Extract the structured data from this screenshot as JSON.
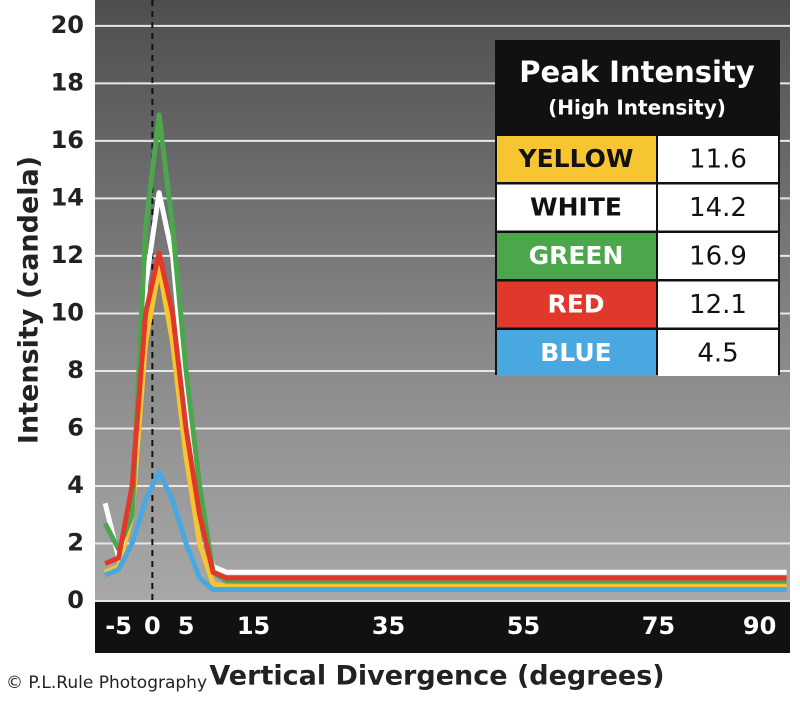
{
  "chart_data": {
    "type": "line",
    "y_label": "Intensity (candela)",
    "x_label": "Vertical Divergence (degrees)",
    "credit": "© P.L.Rule Photography",
    "x": [
      -7,
      -5,
      -3,
      -1,
      1,
      3,
      5,
      7,
      9,
      11,
      94
    ],
    "xlim": [
      -8.5,
      94.5
    ],
    "xticks": [
      -5,
      0,
      5,
      15,
      35,
      55,
      75,
      90
    ],
    "ylim": [
      0,
      20.9
    ],
    "yticks": [
      0,
      2,
      4,
      6,
      8,
      10,
      12,
      14,
      16,
      18,
      20
    ],
    "grid": true,
    "series": [
      {
        "name": "YELLOW",
        "color": "#f7c531",
        "values": [
          1.0,
          1.2,
          3,
          9,
          11.6,
          9,
          5,
          2,
          0.6,
          0.5,
          0.5
        ]
      },
      {
        "name": "WHITE",
        "color": "#ffffff",
        "values": [
          3.4,
          1.5,
          3.5,
          11,
          14.2,
          12,
          7,
          3,
          1.2,
          1.0,
          1.0
        ]
      },
      {
        "name": "GREEN",
        "color": "#4ca64c",
        "values": [
          2.7,
          1.8,
          3,
          13,
          16.9,
          13,
          8,
          4,
          1,
          0.7,
          0.7
        ]
      },
      {
        "name": "RED",
        "color": "#e0392b",
        "values": [
          1.3,
          1.5,
          4,
          10,
          12.1,
          10,
          6,
          3,
          1,
          0.8,
          0.8
        ]
      },
      {
        "name": "BLUE",
        "color": "#4aa8e0",
        "values": [
          0.9,
          1.1,
          2,
          3.5,
          4.5,
          3.5,
          2,
          0.8,
          0.4,
          0.4,
          0.4
        ]
      }
    ],
    "peak_table": {
      "title": "Peak Intensity",
      "subtitle": "(High Intensity)",
      "values": [
        11.6,
        14.2,
        16.9,
        12.1,
        4.5
      ]
    }
  }
}
